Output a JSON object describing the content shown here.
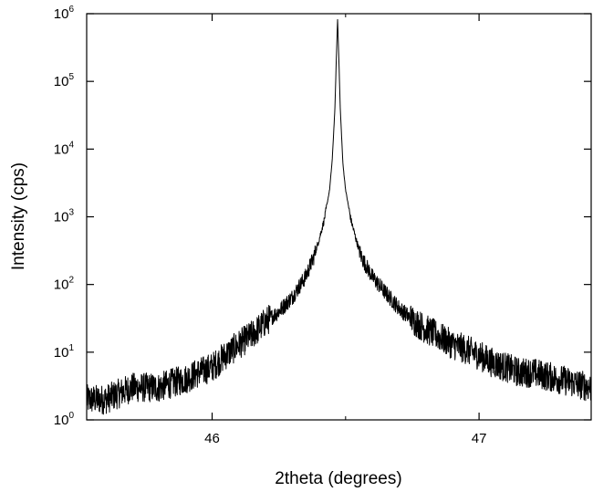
{
  "chart_data": {
    "type": "line",
    "title": "",
    "xlabel": "2theta (degrees)",
    "ylabel": "Intensity (cps)",
    "xlim": [
      45.53,
      47.42
    ],
    "ylim": [
      1,
      1000000
    ],
    "yscale": "log",
    "grid": false,
    "legend": "none",
    "line_color": "#000000",
    "x_ticks": [
      {
        "value": 46,
        "label": "46"
      },
      {
        "value": 47,
        "label": "47"
      }
    ],
    "y_ticks": [
      {
        "value": 1,
        "base": "10",
        "exp": "0"
      },
      {
        "value": 10,
        "base": "10",
        "exp": "1"
      },
      {
        "value": 100,
        "base": "10",
        "exp": "2"
      },
      {
        "value": 1000,
        "base": "10",
        "exp": "3"
      },
      {
        "value": 10000,
        "base": "10",
        "exp": "4"
      },
      {
        "value": 100000,
        "base": "10",
        "exp": "5"
      },
      {
        "value": 1000000,
        "base": "10",
        "exp": "6"
      }
    ],
    "series": [
      {
        "x": [
          45.53,
          45.6,
          45.7,
          45.8,
          45.85,
          45.9,
          45.95,
          46.0,
          46.05,
          46.1,
          46.15,
          46.2,
          46.25,
          46.3,
          46.35,
          46.38,
          46.4,
          46.42,
          46.44,
          46.45,
          46.46,
          46.465,
          46.47,
          46.475,
          46.48,
          46.49,
          46.5,
          46.52,
          46.54,
          46.56,
          46.6,
          46.65,
          46.7,
          46.75,
          46.8,
          46.85,
          46.9,
          46.95,
          47.0,
          47.05,
          47.1,
          47.15,
          47.2,
          47.3,
          47.42
        ],
        "y": [
          2,
          2,
          3,
          3,
          3.5,
          4,
          5,
          6,
          9,
          13,
          18,
          28,
          40,
          65,
          130,
          250,
          450,
          900,
          2500,
          7000,
          40000,
          200000,
          830000,
          200000,
          40000,
          6000,
          2500,
          900,
          450,
          250,
          130,
          75,
          45,
          30,
          22,
          17,
          13,
          11,
          9,
          7,
          6,
          5,
          5,
          4,
          3
        ]
      }
    ]
  }
}
